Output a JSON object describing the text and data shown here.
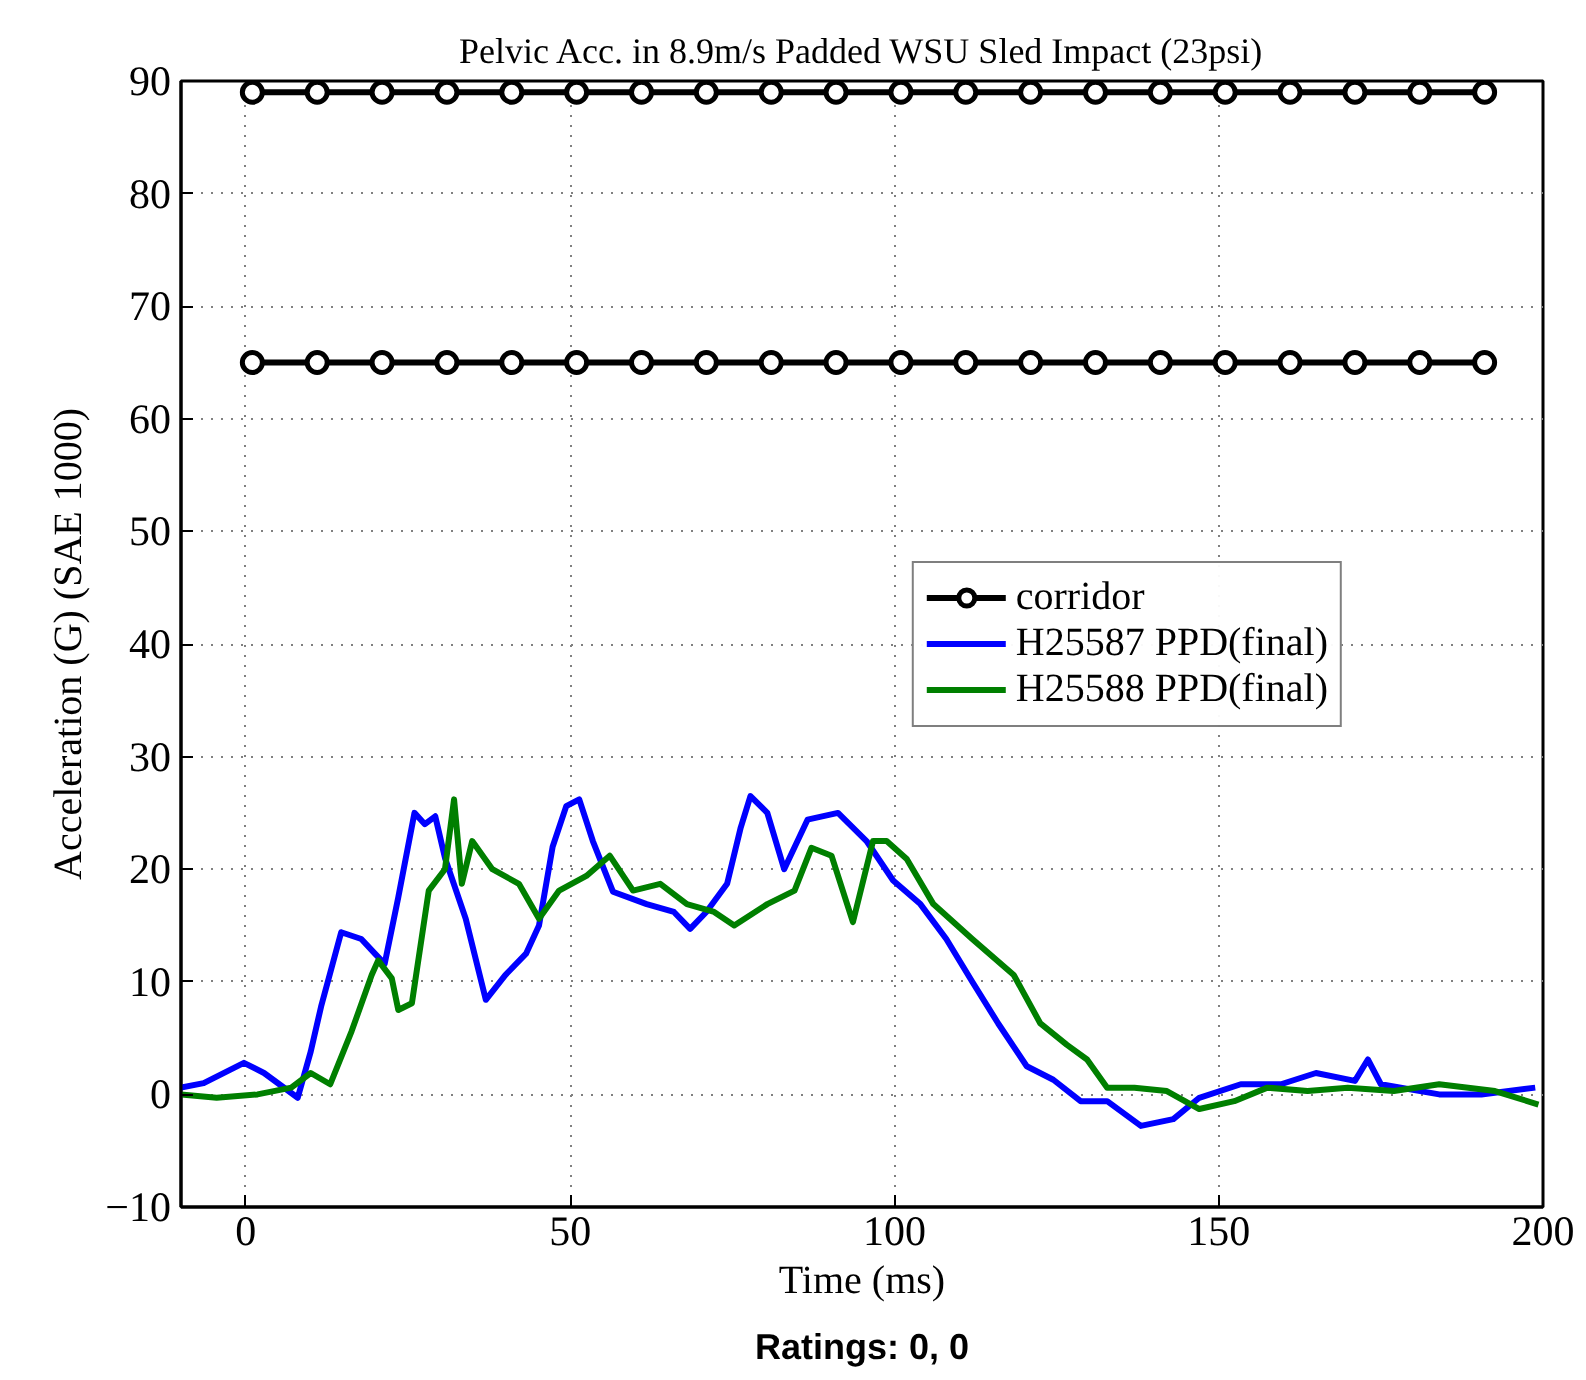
{
  "chart_data": {
    "type": "line",
    "title": "Pelvic Acc. in 8.9m/s Padded WSU Sled Impact (23psi)",
    "xlabel": "Time (ms)",
    "ylabel": "Acceleration (G) (SAE 1000)",
    "annotations": [
      "Ratings: 0, 0"
    ],
    "xlim": [
      -10,
      200
    ],
    "ylim": [
      -10,
      90
    ],
    "xticks": [
      0,
      50,
      100,
      150,
      200
    ],
    "yticks": [
      -10,
      0,
      10,
      20,
      30,
      40,
      50,
      60,
      70,
      80,
      90
    ],
    "grid": true,
    "legend": "right",
    "series": [
      {
        "name": "corridor",
        "color": "#000000",
        "marker": "circle",
        "x": [
          1,
          11,
          21,
          31,
          41,
          51,
          61,
          71,
          81,
          91,
          101,
          111,
          121,
          131,
          141,
          151,
          161,
          171,
          181,
          191
        ],
        "values": [
          89,
          89,
          89,
          89,
          89,
          89,
          89,
          89,
          89,
          89,
          89,
          89,
          89,
          89,
          89,
          89,
          89,
          89,
          89,
          89
        ]
      },
      {
        "color": "#000000",
        "marker": "circle",
        "x": [
          1,
          11,
          21,
          31,
          41,
          51,
          61,
          71,
          81,
          91,
          101,
          111,
          121,
          131,
          141,
          151,
          161,
          171,
          181,
          191
        ],
        "values": [
          65,
          65,
          65,
          65,
          65,
          65,
          65,
          65,
          65,
          65,
          65,
          65,
          65,
          65,
          65,
          65,
          65,
          65,
          65,
          65
        ]
      },
      {
        "name": "H25587 PPD(final)",
        "color": "#0000ff",
        "x": [
          -10,
          -6.5,
          -0.3,
          2.8,
          8,
          10,
          11.6,
          14.7,
          17.8,
          19.9,
          21.4,
          23.5,
          26,
          27.6,
          29.2,
          30.7,
          33.9,
          37,
          40,
          43.2,
          45.2,
          47.3,
          49.4,
          51.4,
          53.5,
          56.6,
          61.8,
          66,
          68.5,
          71,
          74.2,
          76.3,
          77.8,
          80.4,
          83,
          86.6,
          91.3,
          95.7,
          99.8,
          104,
          108,
          112,
          116,
          120.4,
          124.5,
          128.7,
          132.8,
          138,
          143,
          147,
          153.4,
          159.6,
          165,
          171,
          173,
          175,
          184,
          190.5,
          198.8
        ],
        "values": [
          0.6,
          1,
          2.8,
          1.9,
          -0.3,
          3.8,
          7.8,
          14.4,
          13.8,
          12.5,
          11.6,
          17.5,
          25,
          24,
          24.7,
          21,
          15.6,
          8.4,
          10.6,
          12.5,
          15,
          22,
          25.6,
          26.2,
          22.5,
          18,
          16.9,
          16.2,
          14.7,
          16.2,
          18.7,
          23.7,
          26.5,
          25,
          20,
          24.4,
          25,
          22.5,
          19,
          16.9,
          13.8,
          10,
          6.3,
          2.5,
          1.3,
          -0.6,
          -0.6,
          -2.8,
          -2.2,
          -0.3,
          0.9,
          0.9,
          1.9,
          1.2,
          3.1,
          0.9,
          0,
          0,
          0.6
        ]
      },
      {
        "name": "H25588 PPD(final)",
        "color": "#007f00",
        "x": [
          -10,
          -4.5,
          1.8,
          7,
          10,
          13,
          16.3,
          19.4,
          20.4,
          22.5,
          23.5,
          25.6,
          28.2,
          30.7,
          32.1,
          33.3,
          34.9,
          38,
          42.1,
          45.2,
          48.3,
          52.5,
          56.1,
          59.7,
          63.9,
          68,
          72.2,
          75.3,
          80.4,
          84.6,
          87.2,
          90.3,
          93.6,
          96.7,
          98.8,
          101.9,
          106,
          112,
          118.4,
          122.5,
          126.6,
          129.7,
          132.8,
          137,
          142,
          147,
          152.4,
          157.5,
          163.7,
          169.9,
          177,
          184,
          192.6,
          199.3
        ],
        "values": [
          0,
          -0.3,
          0,
          0.6,
          1.9,
          0.9,
          5.6,
          10.6,
          11.9,
          10.3,
          7.5,
          8.1,
          18.1,
          20,
          26.2,
          18.7,
          22.5,
          20,
          18.7,
          15.6,
          18.1,
          19.4,
          21.2,
          18.1,
          18.7,
          16.9,
          16.2,
          15,
          16.9,
          18.1,
          21.9,
          21.2,
          15.3,
          22.5,
          22.5,
          20.9,
          16.9,
          13.8,
          10.6,
          6.3,
          4.4,
          3.1,
          0.6,
          0.6,
          0.3,
          -1.3,
          -0.6,
          0.6,
          0.3,
          0.6,
          0.3,
          0.9,
          0.3,
          -0.9
        ]
      }
    ]
  }
}
